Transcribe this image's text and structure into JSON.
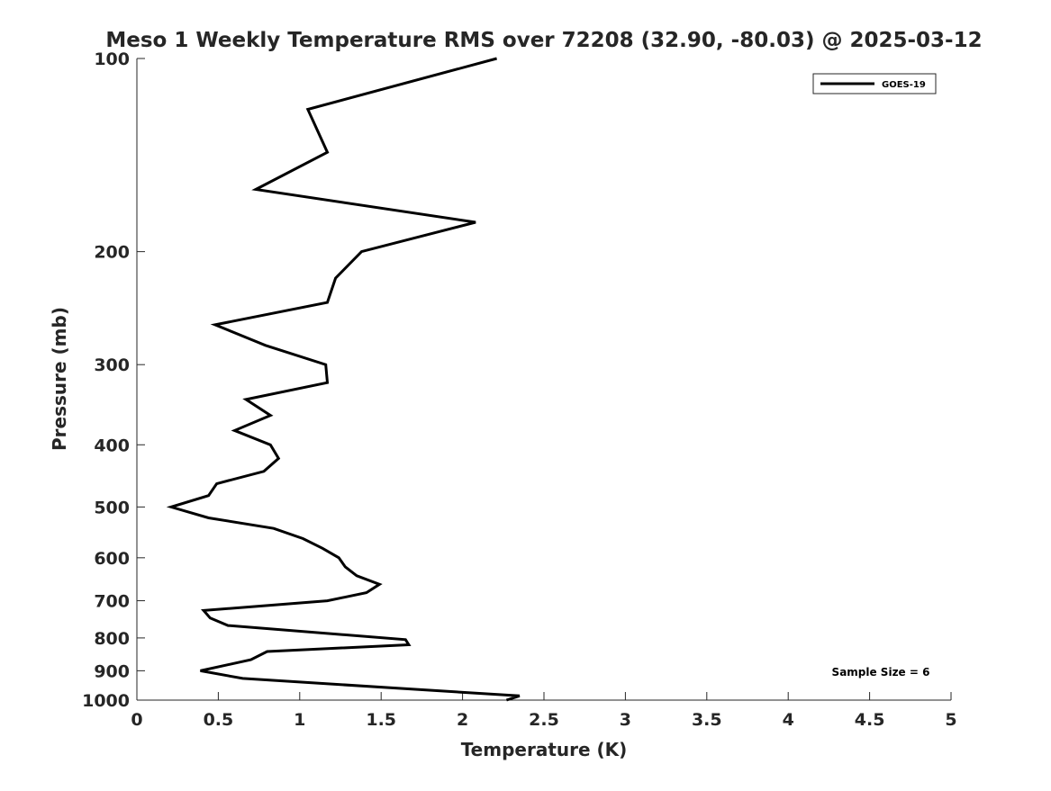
{
  "chart_data": {
    "type": "line",
    "title": "Meso 1 Weekly Temperature RMS over 72208 (32.90, -80.03) @ 2025-03-12",
    "xlabel": "Temperature (K)",
    "ylabel": "Pressure (mb)",
    "xlim": [
      0,
      5
    ],
    "ylim": [
      100,
      1000
    ],
    "yscale": "log",
    "y_reversed": true,
    "grid": false,
    "legend_placement": "top-right",
    "xticks": [
      "0",
      "0.5",
      "1",
      "1.5",
      "2",
      "2.5",
      "3",
      "3.5",
      "4",
      "4.5",
      "5"
    ],
    "xtick_values": [
      0,
      0.5,
      1,
      1.5,
      2,
      2.5,
      3,
      3.5,
      4,
      4.5,
      5
    ],
    "yticks": [
      "100",
      "200",
      "300",
      "400",
      "500",
      "600",
      "700",
      "800",
      "900",
      "1000"
    ],
    "ytick_values": [
      100,
      200,
      300,
      400,
      500,
      600,
      700,
      800,
      900,
      1000
    ],
    "annotation": "Sample Size = 6",
    "series": [
      {
        "name": "GOES-19",
        "color": "#000000",
        "temperature": [
          2.21,
          1.05,
          1.17,
          0.73,
          2.08,
          1.38,
          1.22,
          1.17,
          0.48,
          0.79,
          1.16,
          1.17,
          0.67,
          0.82,
          0.6,
          0.82,
          0.87,
          0.78,
          0.49,
          0.44,
          0.21,
          0.44,
          0.84,
          1.02,
          1.14,
          1.24,
          1.28,
          1.35,
          1.49,
          1.41,
          1.17,
          0.41,
          0.45,
          0.56,
          1.65,
          1.67,
          0.8,
          0.7,
          0.39,
          0.65,
          2.35,
          2.27
        ],
        "pressure": [
          100,
          120,
          140,
          160,
          180,
          200,
          220,
          240,
          260,
          280,
          300,
          320,
          340,
          360,
          380,
          400,
          420,
          440,
          460,
          480,
          500,
          520,
          540,
          560,
          580,
          600,
          620,
          640,
          660,
          680,
          700,
          725,
          745,
          765,
          805,
          820,
          840,
          865,
          900,
          925,
          985,
          1000
        ]
      }
    ]
  }
}
